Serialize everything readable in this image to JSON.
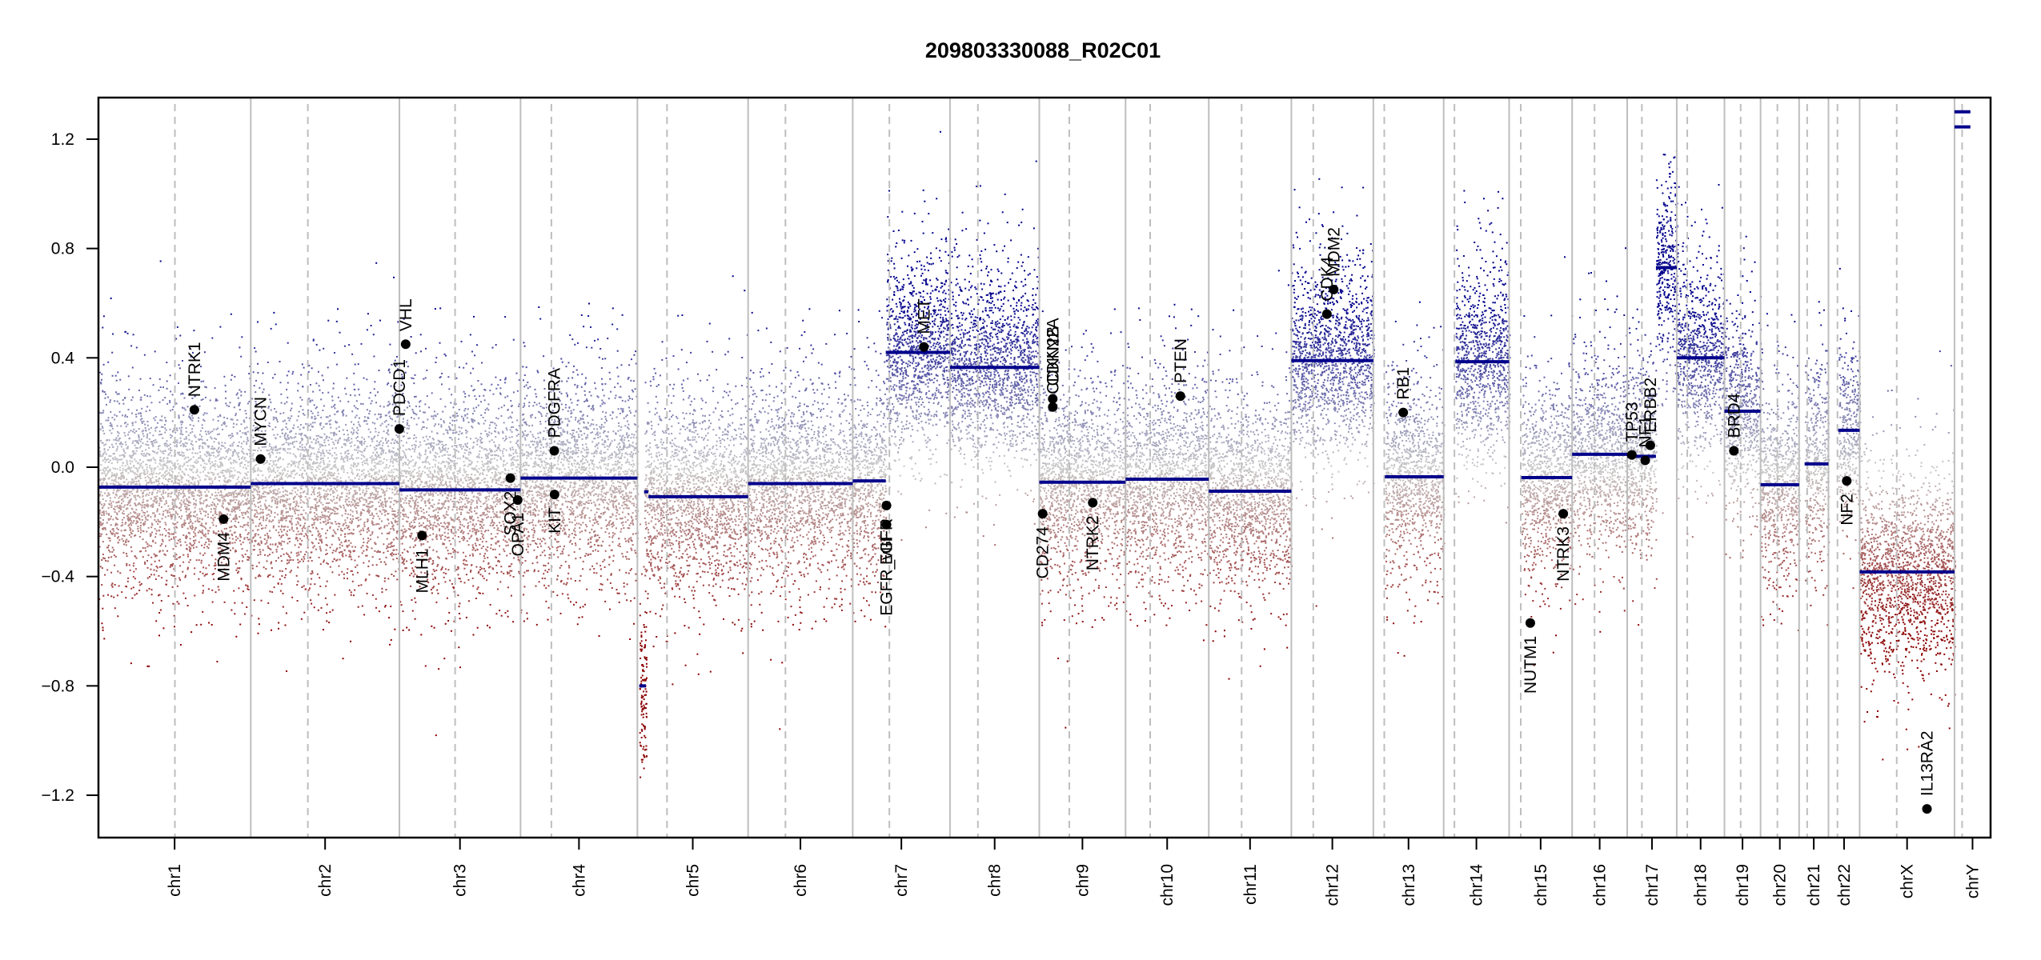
{
  "chart_data": {
    "type": "scatter",
    "title": "209803330088_R02C01",
    "xlabel": "",
    "ylabel": "",
    "ylim": [
      -1.355,
      1.352
    ],
    "yticks": [
      {
        "value": 1.2,
        "label": "1.2"
      },
      {
        "value": 0.8,
        "label": "0.8"
      },
      {
        "value": 0.4,
        "label": "0.4"
      },
      {
        "value": 0.0,
        "label": "0.0"
      },
      {
        "value": -0.4,
        "label": "−0.4"
      },
      {
        "value": -0.8,
        "label": "−0.8"
      },
      {
        "value": -1.2,
        "label": "−1.2"
      }
    ],
    "x_units": "Mb",
    "grid": false,
    "colors": {
      "gain": "#00008b",
      "loss": "#8b0000",
      "neutral": "#c8c8c8",
      "segment": "#00008b",
      "boundary": "#bebebe",
      "gene_marker": "#000000"
    },
    "chromosomes": [
      {
        "name": "chr1",
        "length": 249,
        "centromere": 125
      },
      {
        "name": "chr2",
        "length": 243,
        "centromere": 93.3
      },
      {
        "name": "chr3",
        "length": 198,
        "centromere": 91
      },
      {
        "name": "chr4",
        "length": 191,
        "centromere": 50.4
      },
      {
        "name": "chr5",
        "length": 181,
        "centromere": 48.4
      },
      {
        "name": "chr6",
        "length": 171,
        "centromere": 61
      },
      {
        "name": "chr7",
        "length": 159,
        "centromere": 59.9
      },
      {
        "name": "chr8",
        "length": 146,
        "centromere": 45.6
      },
      {
        "name": "chr9",
        "length": 141,
        "centromere": 49
      },
      {
        "name": "chr10",
        "length": 136,
        "centromere": 40.2
      },
      {
        "name": "chr11",
        "length": 135,
        "centromere": 53.7
      },
      {
        "name": "chr12",
        "length": 134,
        "centromere": 35.8
      },
      {
        "name": "chr13",
        "length": 115,
        "centromere": 17.9
      },
      {
        "name": "chr14",
        "length": 107,
        "centromere": 17.6
      },
      {
        "name": "chr15",
        "length": 103,
        "centromere": 19
      },
      {
        "name": "chr16",
        "length": 90,
        "centromere": 36.6
      },
      {
        "name": "chr17",
        "length": 81,
        "centromere": 24
      },
      {
        "name": "chr18",
        "length": 78,
        "centromere": 17.2
      },
      {
        "name": "chr19",
        "length": 59,
        "centromere": 26.5
      },
      {
        "name": "chr20",
        "length": 63,
        "centromere": 27.5
      },
      {
        "name": "chr21",
        "length": 48,
        "centromere": 13.2
      },
      {
        "name": "chr22",
        "length": 51,
        "centromere": 14.7
      },
      {
        "name": "chrX",
        "length": 155,
        "centromere": 60.6
      },
      {
        "name": "chrY",
        "length": 59,
        "centromere": 12.5
      }
    ],
    "segments": [
      {
        "chr": "chr1",
        "start": 0,
        "end": 249,
        "value": -0.073
      },
      {
        "chr": "chr2",
        "start": 0,
        "end": 243,
        "value": -0.06
      },
      {
        "chr": "chr3",
        "start": 0,
        "end": 198,
        "value": -0.083
      },
      {
        "chr": "chr4",
        "start": 0,
        "end": 191,
        "value": -0.04
      },
      {
        "chr": "chr5",
        "start": 3,
        "end": 14,
        "value": -0.8
      },
      {
        "chr": "chr5",
        "start": 11,
        "end": 18,
        "value": -0.09
      },
      {
        "chr": "chr5",
        "start": 18,
        "end": 181,
        "value": -0.108
      },
      {
        "chr": "chr6",
        "start": 0,
        "end": 171,
        "value": -0.06
      },
      {
        "chr": "chr7",
        "start": 0,
        "end": 54,
        "value": -0.05
      },
      {
        "chr": "chr7",
        "start": 54,
        "end": 159,
        "value": 0.42
      },
      {
        "chr": "chr8",
        "start": 0,
        "end": 146,
        "value": 0.365
      },
      {
        "chr": "chr9",
        "start": 0,
        "end": 141,
        "value": -0.055
      },
      {
        "chr": "chr10",
        "start": 0,
        "end": 136,
        "value": -0.044
      },
      {
        "chr": "chr11",
        "start": 0,
        "end": 135,
        "value": -0.088
      },
      {
        "chr": "chr12",
        "start": 0,
        "end": 134,
        "value": 0.39
      },
      {
        "chr": "chr13",
        "start": 19,
        "end": 115,
        "value": -0.035
      },
      {
        "chr": "chr14",
        "start": 19,
        "end": 107,
        "value": 0.386
      },
      {
        "chr": "chr15",
        "start": 20,
        "end": 103,
        "value": -0.038
      },
      {
        "chr": "chr16",
        "start": 0,
        "end": 90,
        "value": 0.047
      },
      {
        "chr": "chr17",
        "start": 0,
        "end": 47,
        "value": 0.04
      },
      {
        "chr": "chr17",
        "start": 47,
        "end": 81,
        "value": 0.73
      },
      {
        "chr": "chr18",
        "start": 0,
        "end": 78,
        "value": 0.4
      },
      {
        "chr": "chr19",
        "start": 0,
        "end": 59,
        "value": 0.205
      },
      {
        "chr": "chr20",
        "start": 0,
        "end": 63,
        "value": -0.064
      },
      {
        "chr": "chr21",
        "start": 9,
        "end": 48,
        "value": 0.012
      },
      {
        "chr": "chr22",
        "start": 16,
        "end": 51,
        "value": 0.135
      },
      {
        "chr": "chrX",
        "start": 0,
        "end": 155,
        "value": -0.383
      },
      {
        "chr": "chrY",
        "start": 0,
        "end": 26,
        "value": 1.3
      },
      {
        "chr": "chrY",
        "start": 0,
        "end": 26,
        "value": 1.245
      }
    ],
    "genes": [
      {
        "name": "NTRK1",
        "chr": "chr1",
        "pos": 156.8,
        "value": 0.21,
        "label_side": "above"
      },
      {
        "name": "MDM4",
        "chr": "chr1",
        "pos": 204.5,
        "value": -0.19,
        "label_side": "below"
      },
      {
        "name": "MYCN",
        "chr": "chr2",
        "pos": 16.0,
        "value": 0.03,
        "label_side": "above"
      },
      {
        "name": "PDCD1",
        "chr": "chr2",
        "pos": 242.8,
        "value": 0.14,
        "label_side": "above"
      },
      {
        "name": "VHL",
        "chr": "chr3",
        "pos": 10.2,
        "value": 0.45,
        "label_side": "above"
      },
      {
        "name": "MLH1",
        "chr": "chr3",
        "pos": 37.0,
        "value": -0.25,
        "label_side": "below"
      },
      {
        "name": "SOX2",
        "chr": "chr3",
        "pos": 181.4,
        "value": -0.04,
        "label_side": "below"
      },
      {
        "name": "OPA1",
        "chr": "chr3",
        "pos": 193.3,
        "value": -0.12,
        "label_side": "below"
      },
      {
        "name": "PDGFRA",
        "chr": "chr4",
        "pos": 55.1,
        "value": 0.06,
        "label_side": "above"
      },
      {
        "name": "KIT",
        "chr": "chr4",
        "pos": 55.5,
        "value": -0.1,
        "label_side": "below"
      },
      {
        "name": "EGFR",
        "chr": "chr7",
        "pos": 55.2,
        "value": -0.14,
        "label_side": "below"
      },
      {
        "name": "EGFR_vIII",
        "chr": "chr7",
        "pos": 55.2,
        "value": -0.21,
        "label_side": "below"
      },
      {
        "name": "MET",
        "chr": "chr7",
        "pos": 116.3,
        "value": 0.44,
        "label_side": "above"
      },
      {
        "name": "CD274",
        "chr": "chr9",
        "pos": 5.45,
        "value": -0.17,
        "label_side": "below"
      },
      {
        "name": "CDKN2A",
        "chr": "chr9",
        "pos": 21.97,
        "value": 0.25,
        "label_side": "above"
      },
      {
        "name": "CDKN2B",
        "chr": "chr9",
        "pos": 22.0,
        "value": 0.22,
        "label_side": "above"
      },
      {
        "name": "NTRK2",
        "chr": "chr9",
        "pos": 87.3,
        "value": -0.13,
        "label_side": "below"
      },
      {
        "name": "PTEN",
        "chr": "chr10",
        "pos": 89.6,
        "value": 0.26,
        "label_side": "above"
      },
      {
        "name": "CDK4",
        "chr": "chr12",
        "pos": 58.1,
        "value": 0.56,
        "label_side": "above"
      },
      {
        "name": "MDM2",
        "chr": "chr12",
        "pos": 69.2,
        "value": 0.65,
        "label_side": "above"
      },
      {
        "name": "RB1",
        "chr": "chr13",
        "pos": 48.9,
        "value": 0.2,
        "label_side": "above"
      },
      {
        "name": "NUTM1",
        "chr": "chr15",
        "pos": 34.6,
        "value": -0.57,
        "label_side": "below"
      },
      {
        "name": "NTRK3",
        "chr": "chr15",
        "pos": 88.5,
        "value": -0.17,
        "label_side": "below"
      },
      {
        "name": "TP53",
        "chr": "chr17",
        "pos": 7.57,
        "value": 0.045,
        "label_side": "above"
      },
      {
        "name": "NF1",
        "chr": "chr17",
        "pos": 29.5,
        "value": 0.025,
        "label_side": "above"
      },
      {
        "name": "ERBB2",
        "chr": "chr17",
        "pos": 37.8,
        "value": 0.08,
        "label_side": "above"
      },
      {
        "name": "BRD4",
        "chr": "chr19",
        "pos": 15.4,
        "value": 0.06,
        "label_side": "above"
      },
      {
        "name": "NF2",
        "chr": "chr22",
        "pos": 29.9,
        "value": -0.05,
        "label_side": "below"
      },
      {
        "name": "IL13RA2",
        "chr": "chrX",
        "pos": 110.0,
        "value": -1.25,
        "label_side": "above"
      }
    ],
    "probe_spread": 0.17
  }
}
